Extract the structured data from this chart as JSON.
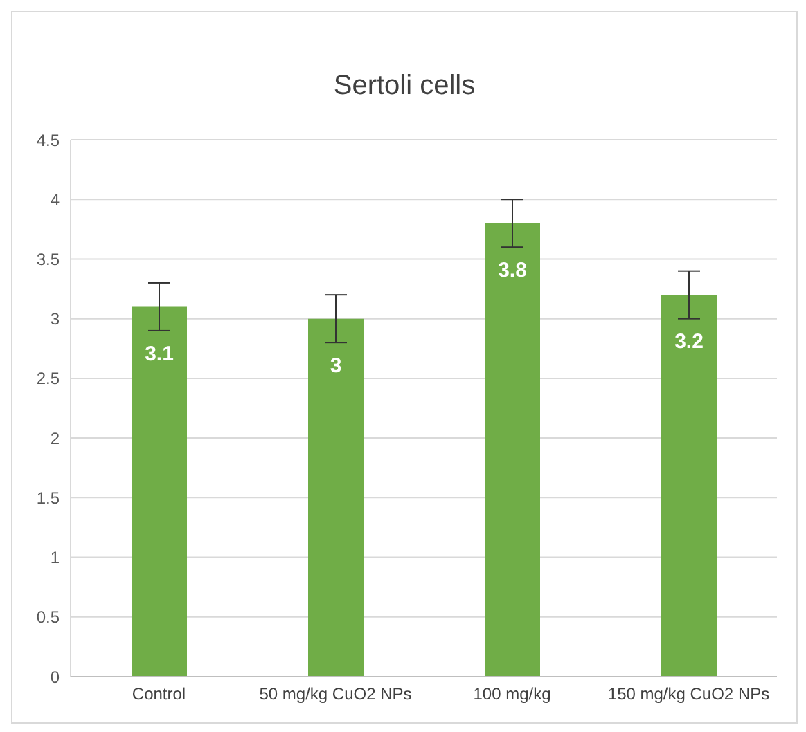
{
  "chart_data": {
    "type": "bar",
    "title": "Sertoli cells",
    "categories": [
      "Control",
      "50 mg/kg CuO2 NPs",
      "100 mg/kg",
      "150 mg/kg CuO2 NPs"
    ],
    "values": [
      3.1,
      3,
      3.8,
      3.2
    ],
    "errors": [
      0.2,
      0.2,
      0.2,
      0.2
    ],
    "color": "#70ad47",
    "ylim": [
      0,
      4.5
    ],
    "yticks": [
      0,
      0.5,
      1,
      1.5,
      2,
      2.5,
      3,
      3.5,
      4,
      4.5
    ],
    "grid": "y",
    "data_labels": true
  }
}
